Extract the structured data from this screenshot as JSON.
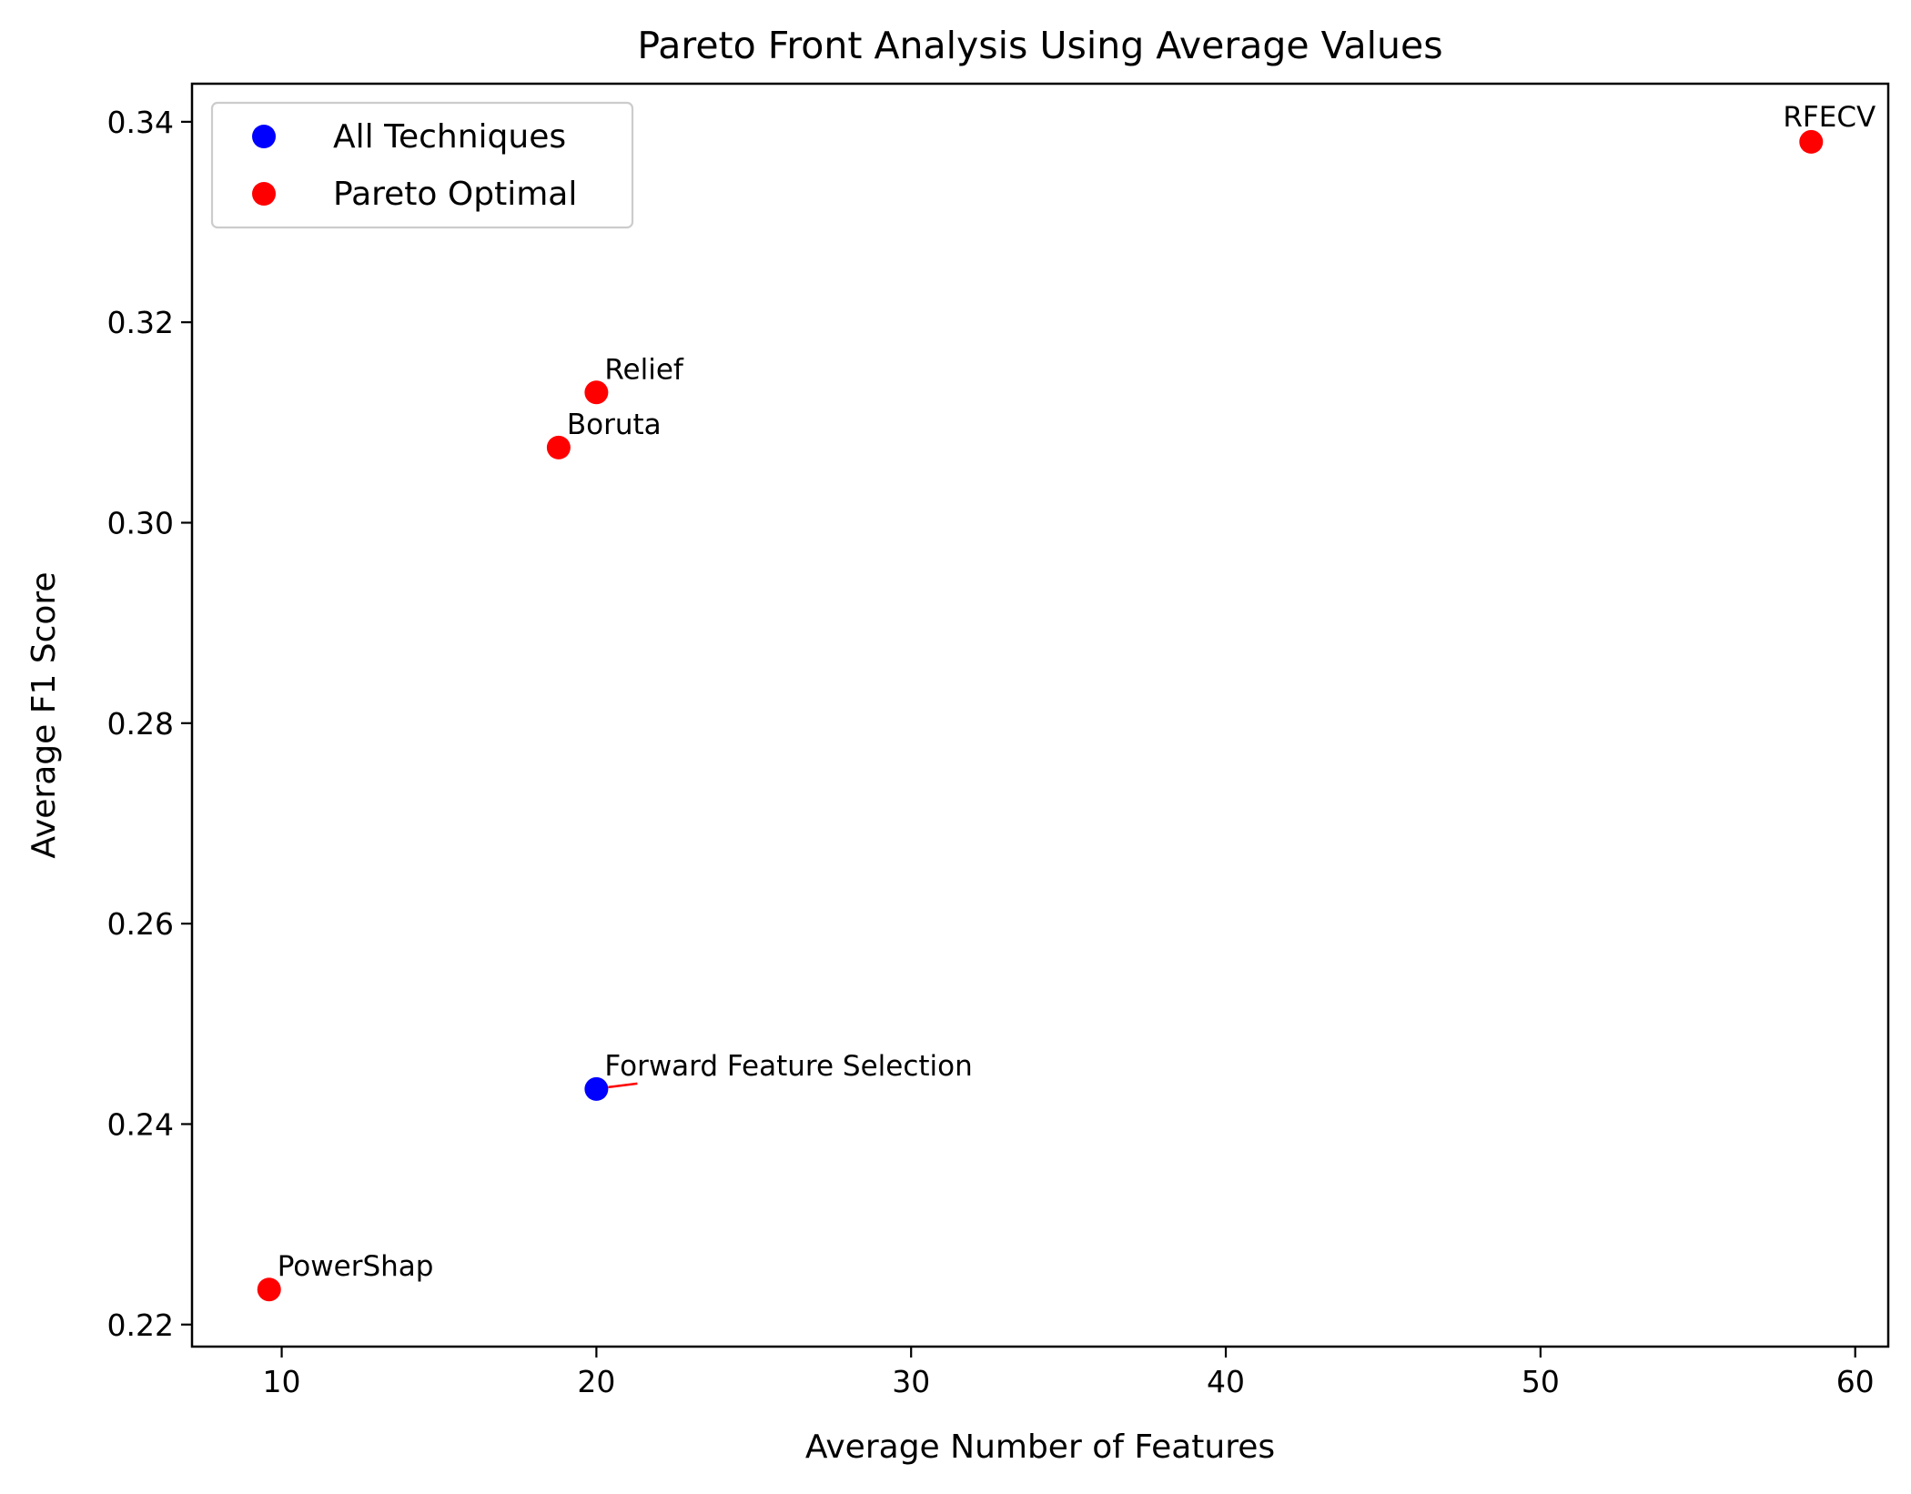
{
  "chart_data": {
    "type": "scatter",
    "title": "Pareto Front Analysis Using Average Values",
    "xlabel": "Average Number of Features",
    "ylabel": "Average F1 Score",
    "xlim": [
      7.15,
      61.05
    ],
    "ylim": [
      0.2178,
      0.3438
    ],
    "xticks": [
      10,
      20,
      30,
      40,
      50,
      60
    ],
    "yticks": [
      0.22,
      0.24,
      0.26,
      0.28,
      0.3,
      0.32,
      0.34
    ],
    "xtick_labels": [
      "10",
      "20",
      "30",
      "40",
      "50",
      "60"
    ],
    "ytick_labels": [
      "0.22",
      "0.24",
      "0.26",
      "0.28",
      "0.30",
      "0.32",
      "0.34"
    ],
    "grid": false,
    "legend_position": "top-left",
    "colors": {
      "all_techniques": "#0000ff",
      "pareto_optimal": "#ff0000",
      "axes": "#000000",
      "background": "#ffffff"
    },
    "series": [
      {
        "name": "All Techniques",
        "color": "#0000ff",
        "points": [
          {
            "label": "Forward Feature Selection",
            "x": 20.0,
            "y": 0.2435
          }
        ]
      },
      {
        "name": "Pareto Optimal",
        "color": "#ff0000",
        "points": [
          {
            "label": "RFECV",
            "x": 58.6,
            "y": 0.338
          },
          {
            "label": "Relief",
            "x": 20.0,
            "y": 0.313
          },
          {
            "label": "Boruta",
            "x": 18.8,
            "y": 0.3075
          },
          {
            "label": "PowerShap",
            "x": 9.6,
            "y": 0.2235
          }
        ]
      }
    ]
  }
}
